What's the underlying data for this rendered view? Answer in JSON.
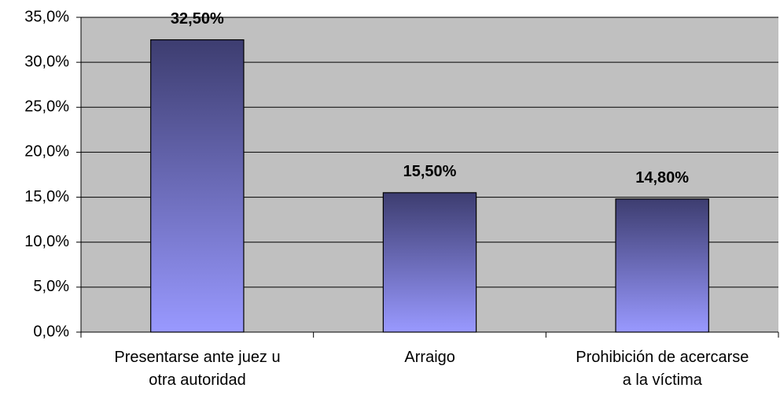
{
  "chart_data": {
    "type": "bar",
    "categories": [
      "Presentarse ante juez u\notra autoridad",
      "Arraigo",
      "Prohibición de acercarse\na la víctima"
    ],
    "values": [
      32.5,
      15.5,
      14.8
    ],
    "value_labels": [
      "32,50%",
      "15,50%",
      "14,80%"
    ],
    "color_top": "#3d3d70",
    "color_bottom": "#9999ff",
    "ylim": [
      0,
      35
    ],
    "yticks": [
      {
        "value": 0,
        "label": "0,0%"
      },
      {
        "value": 5,
        "label": "5,0%"
      },
      {
        "value": 10,
        "label": "10,0%"
      },
      {
        "value": 15,
        "label": "15,0%"
      },
      {
        "value": 20,
        "label": "20,0%"
      },
      {
        "value": 25,
        "label": "25,0%"
      },
      {
        "value": 30,
        "label": "30,0%"
      },
      {
        "value": 35,
        "label": "35,0%"
      }
    ],
    "grid": true
  }
}
